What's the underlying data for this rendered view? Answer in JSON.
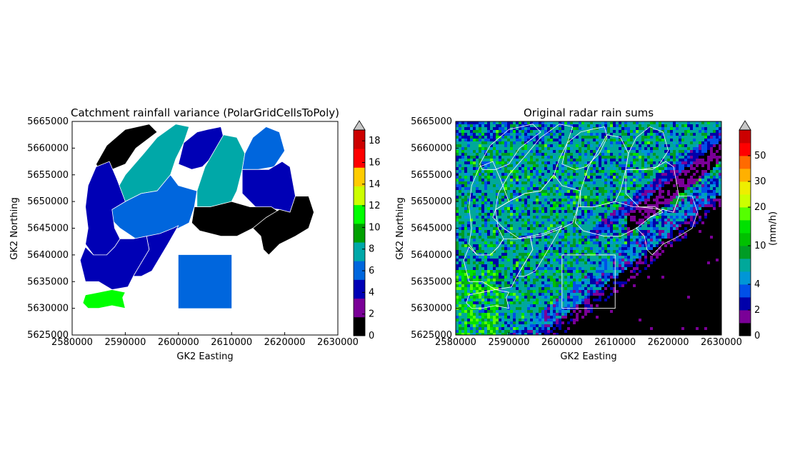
{
  "chart_data": [
    {
      "type": "choropleth",
      "title": "Catchment rainfall variance (PolarGridCellsToPoly)",
      "xlabel": "GK2 Easting",
      "ylabel": "GK2 Northing",
      "xlim": [
        2580000,
        2630000
      ],
      "ylim": [
        5625000,
        5665000
      ],
      "xticks": [
        "2580000",
        "2590000",
        "2600000",
        "2610000",
        "2620000",
        "2630000"
      ],
      "yticks": [
        "5625000",
        "5630000",
        "5635000",
        "5640000",
        "5645000",
        "5650000",
        "5655000",
        "5660000",
        "5665000"
      ],
      "colorbar": {
        "ticks": [
          "0",
          "2",
          "4",
          "6",
          "8",
          "10",
          "12",
          "14",
          "16",
          "18"
        ],
        "range": [
          0,
          19
        ],
        "extend": "max",
        "label": ""
      },
      "box": {
        "x": [
          2600000,
          2610000
        ],
        "y": [
          5630000,
          5640000
        ],
        "value": 6.2
      },
      "catchments": [
        {
          "value": 1.5,
          "points": [
            [
              2584.5,
              5657
            ],
            [
              2586.5,
              5660.5
            ],
            [
              2590,
              5663.5
            ],
            [
              2594.5,
              5664.5
            ],
            [
              2596,
              5663
            ],
            [
              2592,
              5660
            ],
            [
              2590,
              5657
            ],
            [
              2587.5,
              5656
            ],
            [
              2585,
              5656
            ]
          ]
        },
        {
          "value": 7.2,
          "points": [
            [
              2593.5,
              5659
            ],
            [
              2596,
              5662
            ],
            [
              2599.5,
              5664.5
            ],
            [
              2602,
              5664
            ],
            [
              2601,
              5661
            ],
            [
              2599.5,
              5658
            ],
            [
              2598.5,
              5655
            ],
            [
              2596,
              5652
            ],
            [
              2593,
              5651.5
            ],
            [
              2590,
              5650
            ],
            [
              2587.5,
              5648.5
            ],
            [
              2588,
              5651.5
            ],
            [
              2590,
              5655
            ]
          ]
        },
        {
          "value": 4.8,
          "points": [
            [
              2601,
              5661
            ],
            [
              2603.5,
              5663
            ],
            [
              2605.5,
              5663.5
            ],
            [
              2608,
              5664
            ],
            [
              2608.5,
              5662
            ],
            [
              2607,
              5659
            ],
            [
              2604.5,
              5656.5
            ],
            [
              2602.5,
              5656
            ],
            [
              2600,
              5657
            ]
          ]
        },
        {
          "value": 8.3,
          "points": [
            [
              2605,
              5656.5
            ],
            [
              2608.5,
              5662.5
            ],
            [
              2611,
              5662
            ],
            [
              2612.5,
              5659
            ],
            [
              2612,
              5656
            ],
            [
              2611,
              5652
            ],
            [
              2610,
              5650
            ],
            [
              2606,
              5649
            ],
            [
              2603.5,
              5649
            ],
            [
              2603.5,
              5652
            ]
          ]
        },
        {
          "value": 6.5,
          "points": [
            [
              2612.5,
              5659
            ],
            [
              2614,
              5662
            ],
            [
              2616.5,
              5664
            ],
            [
              2619,
              5663
            ],
            [
              2620,
              5659.5
            ],
            [
              2618,
              5656.5
            ],
            [
              2615,
              5656
            ],
            [
              2612,
              5656
            ]
          ]
        },
        {
          "value": 3.8,
          "points": [
            [
              2612,
              5656
            ],
            [
              2612,
              5651.5
            ],
            [
              2614.5,
              5649
            ],
            [
              2619,
              5648.5
            ],
            [
              2621,
              5648
            ],
            [
              2622,
              5651
            ],
            [
              2621,
              5656.5
            ],
            [
              2619.5,
              5657.5
            ],
            [
              2617,
              5656
            ]
          ]
        },
        {
          "value": 6.4,
          "points": [
            [
              2587.5,
              5648.5
            ],
            [
              2590,
              5650
            ],
            [
              2593,
              5651.5
            ],
            [
              2596,
              5652
            ],
            [
              2598.5,
              5655
            ],
            [
              2600,
              5653
            ],
            [
              2603.5,
              5652
            ],
            [
              2603,
              5649
            ],
            [
              2602,
              5646
            ],
            [
              2600,
              5645
            ],
            [
              2596,
              5643.5
            ],
            [
              2592,
              5643
            ],
            [
              2589,
              5645
            ],
            [
              2587,
              5647
            ]
          ]
        },
        {
          "value": 1.6,
          "points": [
            [
              2603,
              5649
            ],
            [
              2606,
              5649
            ],
            [
              2610,
              5650
            ],
            [
              2613.5,
              5649
            ],
            [
              2617.5,
              5649
            ],
            [
              2619,
              5648
            ],
            [
              2616.5,
              5647
            ],
            [
              2614,
              5645
            ],
            [
              2611,
              5643.5
            ],
            [
              2608,
              5643.5
            ],
            [
              2604,
              5644.5
            ],
            [
              2602.5,
              5646
            ]
          ]
        },
        {
          "value": 0.1,
          "points": [
            [
              2616.5,
              5647
            ],
            [
              2619,
              5648.5
            ],
            [
              2621,
              5648
            ],
            [
              2622,
              5651
            ],
            [
              2624.5,
              5651
            ],
            [
              2625.5,
              5648
            ],
            [
              2624.5,
              5645
            ],
            [
              2622,
              5643.5
            ],
            [
              2619,
              5642
            ],
            [
              2617,
              5640
            ],
            [
              2616,
              5641
            ],
            [
              2615.5,
              5643.5
            ],
            [
              2614,
              5645
            ]
          ]
        },
        {
          "value": 3.9,
          "points": [
            [
              2587,
              5657.5
            ],
            [
              2588.5,
              5654
            ],
            [
              2590,
              5650
            ],
            [
              2587.5,
              5648.5
            ],
            [
              2588,
              5645
            ],
            [
              2589,
              5643
            ],
            [
              2588,
              5641.5
            ],
            [
              2586.5,
              5640
            ],
            [
              2584,
              5640
            ],
            [
              2582.5,
              5642
            ],
            [
              2583,
              5645
            ],
            [
              2582.5,
              5649
            ],
            [
              2583,
              5653
            ],
            [
              2584.5,
              5656.5
            ]
          ]
        },
        {
          "value": 5.0,
          "points": [
            [
              2589,
              5643
            ],
            [
              2591.5,
              5643
            ],
            [
              2594,
              5643.5
            ],
            [
              2594.5,
              5641
            ],
            [
              2593,
              5638.5
            ],
            [
              2591.5,
              5636
            ],
            [
              2590.5,
              5634
            ],
            [
              2587.5,
              5633.5
            ],
            [
              2585,
              5635
            ],
            [
              2582.5,
              5635
            ],
            [
              2581.5,
              5639
            ],
            [
              2582.5,
              5641.5
            ],
            [
              2584,
              5640
            ],
            [
              2586.5,
              5640
            ],
            [
              2588,
              5641.5
            ]
          ]
        },
        {
          "value": 3.8,
          "points": [
            [
              2594,
              5643.5
            ],
            [
              2596.5,
              5644
            ],
            [
              2599,
              5645
            ],
            [
              2600,
              5645.5
            ],
            [
              2598,
              5642
            ],
            [
              2596.5,
              5639.5
            ],
            [
              2595,
              5637
            ],
            [
              2593,
              5636
            ],
            [
              2591.5,
              5636
            ],
            [
              2593,
              5638.5
            ],
            [
              2594.5,
              5641
            ]
          ]
        },
        {
          "value": 11.6,
          "points": [
            [
              2582.5,
              5632.5
            ],
            [
              2585,
              5633
            ],
            [
              2587.5,
              5633.5
            ],
            [
              2590,
              5633
            ],
            [
              2589.5,
              5632
            ],
            [
              2590,
              5630
            ],
            [
              2587.5,
              5630.5
            ],
            [
              2585,
              5630
            ],
            [
              2583,
              5630
            ],
            [
              2582,
              5631
            ]
          ]
        }
      ]
    },
    {
      "type": "heatmap",
      "title": "Original radar rain sums",
      "xlabel": "GK2 Easting",
      "ylabel": "GK2 Northing",
      "xlim": [
        2580000,
        2630000
      ],
      "ylim": [
        5625000,
        5665000
      ],
      "xticks": [
        "2580000",
        "2590000",
        "2600000",
        "2610000",
        "2620000",
        "2630000"
      ],
      "yticks": [
        "5625000",
        "5630000",
        "5635000",
        "5640000",
        "5645000",
        "5650000",
        "5655000",
        "5660000",
        "5665000"
      ],
      "colorbar": {
        "ticks": [
          "0",
          "2",
          "4",
          "10",
          "20",
          "30",
          "50"
        ],
        "levels": [
          0,
          1,
          2,
          3,
          4,
          5,
          7,
          10,
          12,
          15,
          20,
          25,
          30,
          40,
          50,
          60
        ],
        "extend": "max",
        "label": "(mm/h)"
      },
      "box": {
        "x": [
          2600000,
          2610000
        ],
        "y": [
          5630000,
          5640000
        ]
      },
      "dry_boundary": {
        "x0": 2598000,
        "y0": 5625000,
        "slope": 0.78
      },
      "dry_band_value": 0
    }
  ],
  "colors": {
    "variance_palette": [
      "#000000",
      "#7a0097",
      "#0000b5",
      "#0066dd",
      "#00a8a8",
      "#00a000",
      "#00ff00",
      "#ccff00",
      "#ffcc00",
      "#ff0000",
      "#cc0000"
    ],
    "radar_palette": [
      "#000000",
      "#7a0097",
      "#0000aa",
      "#0050e8",
      "#0096d6",
      "#00a89a",
      "#009c24",
      "#00c000",
      "#00e100",
      "#55ff00",
      "#ccff00",
      "#eeee00",
      "#ffb000",
      "#ff6a00",
      "#ff0000",
      "#cc0000"
    ]
  }
}
